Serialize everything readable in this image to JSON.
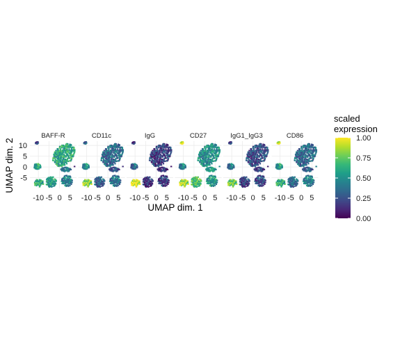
{
  "chart_data": {
    "type": "scatter",
    "xlabel": "UMAP dim. 1",
    "ylabel": "UMAP dim. 2",
    "xlim": [
      -14,
      8
    ],
    "ylim": [
      -10,
      12
    ],
    "x_ticks": [
      -10,
      -5,
      0,
      5
    ],
    "x_tick_labels": [
      "-10",
      "-5",
      "0",
      "5"
    ],
    "y_ticks": [
      -5,
      0,
      5,
      10
    ],
    "y_tick_labels": [
      "-5",
      "0",
      "5",
      "10"
    ],
    "grid": true,
    "facets": [
      {
        "name": "BAFF-R",
        "expr": {
          "a": 0.2,
          "b": 0.6,
          "c": 0.6,
          "d": 0.45,
          "e": 0.55,
          "f": 0.6,
          "g": 0.4
        }
      },
      {
        "name": "CD11c",
        "expr": {
          "a": 0.3,
          "b": 0.35,
          "c": 0.5,
          "d": 0.4,
          "e": 0.3,
          "f": 0.8,
          "g": 0.25
        }
      },
      {
        "name": "IgG",
        "expr": {
          "a": 0.15,
          "b": 0.2,
          "c": 0.35,
          "d": 0.2,
          "e": 0.15,
          "f": 0.95,
          "g": 0.15
        }
      },
      {
        "name": "CD27",
        "expr": {
          "a": 0.95,
          "b": 0.5,
          "c": 0.45,
          "d": 0.55,
          "e": 0.7,
          "f": 0.85,
          "g": 0.55
        }
      },
      {
        "name": "IgG1_IgG3",
        "expr": {
          "a": 0.2,
          "b": 0.25,
          "c": 0.4,
          "d": 0.25,
          "e": 0.2,
          "f": 0.75,
          "g": 0.2
        }
      },
      {
        "name": "CD86",
        "expr": {
          "a": 0.9,
          "b": 0.35,
          "c": 0.55,
          "d": 0.45,
          "e": 0.35,
          "f": 0.6,
          "g": 0.3
        }
      }
    ],
    "legend": {
      "title_line1": "scaled",
      "title_line2": "expression",
      "ticks": [
        0,
        0.25,
        0.5,
        0.75,
        1
      ],
      "tick_labels": [
        "0.00",
        "0.25",
        "0.50",
        "0.75",
        "1.00"
      ],
      "placement": "right",
      "palette": [
        "#440154",
        "#482878",
        "#3e4a89",
        "#31688e",
        "#26828e",
        "#1f9e89",
        "#35b779",
        "#6ece58",
        "#b5de2b",
        "#fde725"
      ]
    }
  }
}
